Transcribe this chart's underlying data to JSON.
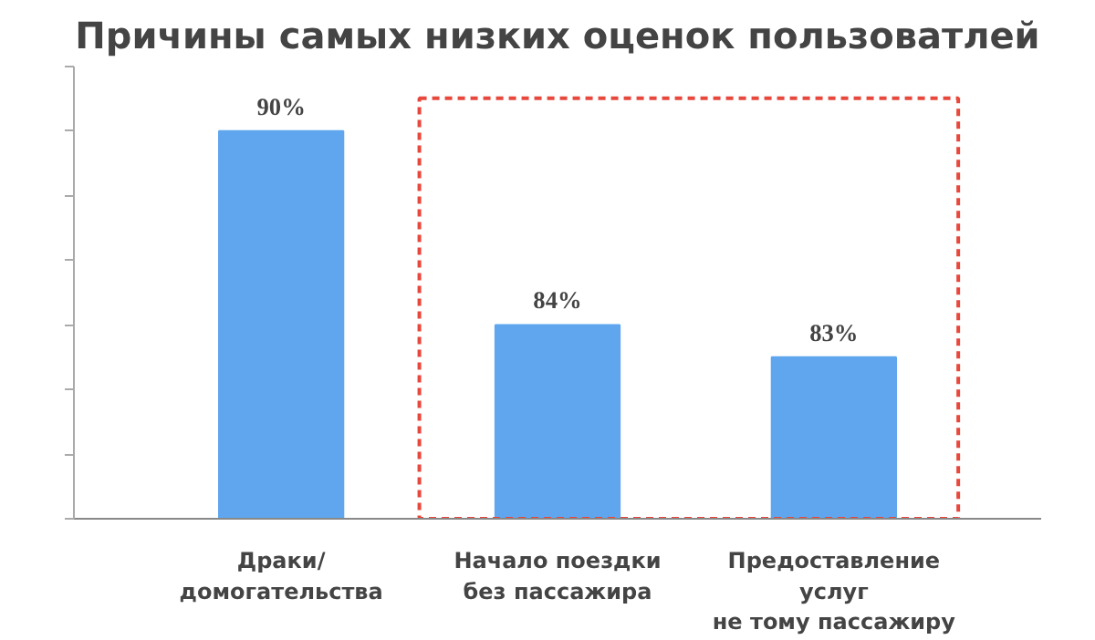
{
  "chart_data": {
    "type": "bar",
    "title": "Причины самых низких оценок пользоватлей",
    "categories": [
      "Драки/\nдомогательства",
      "Начало поездки\nбез пассажира",
      "Предоставление\nуслуг\nне тому пассажиру"
    ],
    "values": [
      90,
      84,
      83
    ],
    "color": "#5fa6ee",
    "data_labels": true,
    "value_labels": [
      "90%",
      "84%",
      "83%"
    ],
    "ylim": [
      78,
      92
    ],
    "yticks": [
      {
        "value": 78,
        "label": null
      },
      {
        "value": 80,
        "label": null
      },
      {
        "value": 82,
        "label": null
      },
      {
        "value": 84,
        "label": null
      },
      {
        "value": 86,
        "label": null
      },
      {
        "value": 88,
        "label": null
      },
      {
        "value": 90,
        "label": null
      },
      {
        "value": 92,
        "label": null
      }
    ],
    "tick_labels": "x",
    "grid": false
  }
}
